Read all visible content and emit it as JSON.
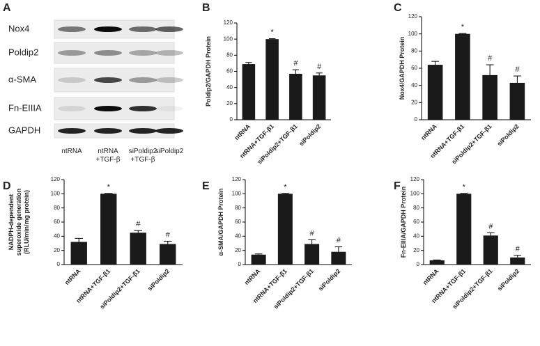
{
  "blot": {
    "panel": "A",
    "proteins": [
      "Nox4",
      "Poldip2",
      "α-SMA",
      "Fn-EIIIA",
      "GAPDH"
    ],
    "lanes": [
      [
        "ntRNA"
      ],
      [
        "ntRNA",
        "+TGF-β"
      ],
      [
        "siPoldip2",
        "+TGF-β"
      ],
      [
        "siPoldip2"
      ]
    ]
  },
  "chart_data": [
    {
      "type": "bar",
      "panel": "B",
      "ylabel": [
        "Poldip2/GAPDH Protein"
      ],
      "categories": [
        "ntRNA",
        "ntRNA+TGF-β1",
        "siPoldip2+TGF-β1",
        "siPoldip2"
      ],
      "values": [
        69,
        100,
        57,
        55
      ],
      "errors": [
        2,
        0.5,
        5,
        3
      ],
      "annotations": [
        null,
        "*",
        "#",
        "#"
      ],
      "color": "#1a1a1a",
      "ylim": [
        0,
        120
      ],
      "yticks": [
        0,
        20,
        40,
        60,
        80,
        100,
        120
      ]
    },
    {
      "type": "bar",
      "panel": "C",
      "ylabel": [
        "Nox4/GAPDH Protein"
      ],
      "categories": [
        "ntRNA",
        "ntRNA+TGF-β1",
        "siPoldip2+TGF-β1",
        "siPoldip2"
      ],
      "values": [
        64,
        100,
        52,
        43
      ],
      "errors": [
        4,
        0.5,
        12,
        8
      ],
      "annotations": [
        null,
        "*",
        "#",
        "#"
      ],
      "color": "#1a1a1a",
      "ylim": [
        0,
        120
      ],
      "yticks": [
        0,
        20,
        40,
        60,
        80,
        100,
        120
      ]
    },
    {
      "type": "bar",
      "panel": "D",
      "ylabel": [
        "NADPH-dependent",
        "superoxide generation",
        "(RLU/min/mg protein)"
      ],
      "categories": [
        "ntRNA",
        "ntRNA+TGF-β1",
        "siPoldip2+TGF-β1",
        "siPoldip2"
      ],
      "values": [
        32,
        100,
        45,
        29
      ],
      "errors": [
        5,
        0.5,
        3,
        4
      ],
      "annotations": [
        null,
        "*",
        "#",
        "#"
      ],
      "color": "#1a1a1a",
      "ylim": [
        0,
        120
      ],
      "yticks": [
        0,
        20,
        40,
        60,
        80,
        100,
        120
      ]
    },
    {
      "type": "bar",
      "panel": "E",
      "ylabel": [
        "α-SMA/GAPDH Protein"
      ],
      "categories": [
        "ntRNA",
        "ntRNA+TGF-β1",
        "siPoldip2+TGF-β1",
        "siPoldip2"
      ],
      "values": [
        14,
        100,
        29,
        18
      ],
      "errors": [
        1,
        0.5,
        6,
        7
      ],
      "annotations": [
        null,
        "*",
        "#",
        "#"
      ],
      "color": "#1a1a1a",
      "ylim": [
        0,
        120
      ],
      "yticks": [
        0,
        20,
        40,
        60,
        80,
        100,
        120
      ]
    },
    {
      "type": "bar",
      "panel": "F",
      "ylabel": [
        "Fn-EIIIA/GAPDH Protein"
      ],
      "categories": [
        "ntRNA",
        "ntRNA+TGF-β1",
        "siPoldip2+TGF-β1",
        "siPoldip2"
      ],
      "values": [
        6,
        100,
        41,
        10
      ],
      "errors": [
        0.5,
        0.5,
        4,
        3
      ],
      "annotations": [
        null,
        "*",
        "#",
        "#"
      ],
      "color": "#1a1a1a",
      "ylim": [
        0,
        120
      ],
      "yticks": [
        0,
        20,
        40,
        60,
        80,
        100,
        120
      ]
    }
  ]
}
